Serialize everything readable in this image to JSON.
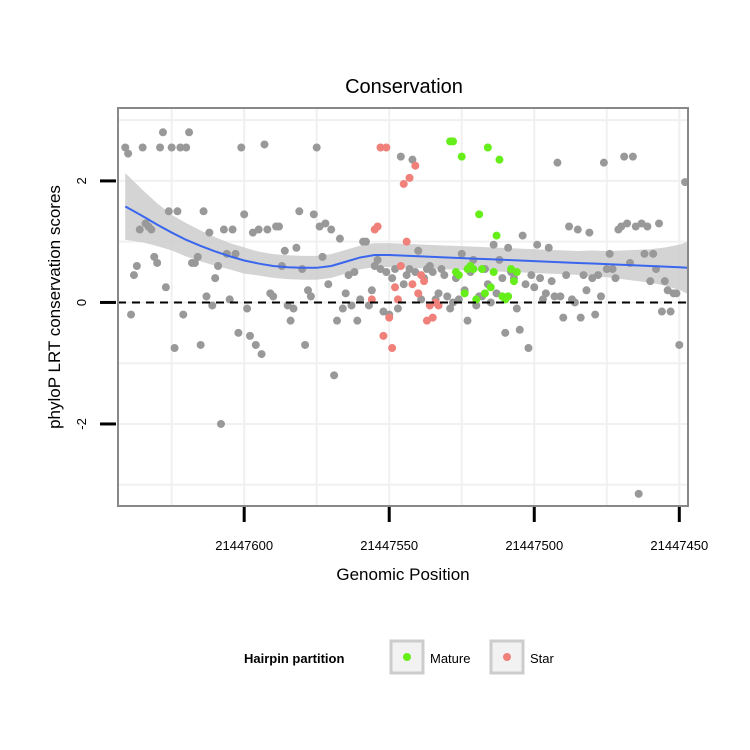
{
  "chart_data": {
    "type": "scatter",
    "title": "Conservation",
    "xlabel": "Genomic Position",
    "ylabel": "phyloP LRT conservation scores",
    "x_reversed": true,
    "xlim": [
      21447643.5,
      21447447
    ],
    "ylim": [
      -3.35,
      3.2
    ],
    "x_ticks": [
      21447600,
      21447550,
      21447500,
      21447450
    ],
    "x_tick_labels": [
      "21447600",
      "21447550",
      "21447500",
      "21447450"
    ],
    "y_ticks": [
      -2,
      0,
      2
    ],
    "y_tick_labels": [
      "-2",
      "0",
      "2"
    ],
    "reference_line_y": 0,
    "grid": true,
    "colors": {
      "other": "#999999",
      "mature": "#66ee1a",
      "star": "#f0807a",
      "smooth": "#3a66ee",
      "ribbon": "#cccccc",
      "panel_border": "#888888",
      "grid": "#f0f0f0"
    },
    "legend": {
      "title": "Hairpin partition",
      "position": "bottom",
      "entries": [
        {
          "label": "Mature",
          "color": "#66ee1a"
        },
        {
          "label": "Star",
          "color": "#f0807a"
        }
      ]
    },
    "series": [
      {
        "name": "Other",
        "points": [
          [
            21447641,
            2.55
          ],
          [
            21447640,
            2.45
          ],
          [
            21447639,
            -0.2
          ],
          [
            21447638,
            0.45
          ],
          [
            21447637,
            0.6
          ],
          [
            21447636,
            1.2
          ],
          [
            21447635,
            2.55
          ],
          [
            21447634,
            1.3
          ],
          [
            21447633,
            1.25
          ],
          [
            21447632,
            1.2
          ],
          [
            21447631,
            0.75
          ],
          [
            21447630,
            0.65
          ],
          [
            21447629,
            2.55
          ],
          [
            21447628,
            2.8
          ],
          [
            21447627,
            0.25
          ],
          [
            21447626,
            1.5
          ],
          [
            21447625,
            2.55
          ],
          [
            21447624,
            -0.75
          ],
          [
            21447623,
            1.5
          ],
          [
            21447622,
            2.55
          ],
          [
            21447621,
            -0.2
          ],
          [
            21447620,
            2.55
          ],
          [
            21447619,
            2.8
          ],
          [
            21447618,
            0.65
          ],
          [
            21447617,
            0.65
          ],
          [
            21447616,
            0.75
          ],
          [
            21447615,
            -0.7
          ],
          [
            21447614,
            1.5
          ],
          [
            21447613,
            0.1
          ],
          [
            21447612,
            1.15
          ],
          [
            21447611,
            -0.05
          ],
          [
            21447610,
            0.4
          ],
          [
            21447609,
            0.6
          ],
          [
            21447608,
            -2.0
          ],
          [
            21447607,
            1.2
          ],
          [
            21447606,
            0.8
          ],
          [
            21447605,
            0.05
          ],
          [
            21447604,
            1.2
          ],
          [
            21447603,
            0.8
          ],
          [
            21447602,
            -0.5
          ],
          [
            21447601,
            2.55
          ],
          [
            21447600,
            1.45
          ],
          [
            21447599,
            -0.1
          ],
          [
            21447598,
            -0.55
          ],
          [
            21447597,
            1.15
          ],
          [
            21447596,
            -0.7
          ],
          [
            21447595,
            1.2
          ],
          [
            21447594,
            -0.85
          ],
          [
            21447593,
            2.6
          ],
          [
            21447592,
            1.2
          ],
          [
            21447591,
            0.15
          ],
          [
            21447590,
            0.1
          ],
          [
            21447589,
            1.25
          ],
          [
            21447588,
            1.25
          ],
          [
            21447587,
            0.6
          ],
          [
            21447586,
            0.85
          ],
          [
            21447585,
            -0.05
          ],
          [
            21447584,
            -0.3
          ],
          [
            21447583,
            -0.1
          ],
          [
            21447582,
            0.9
          ],
          [
            21447581,
            1.5
          ],
          [
            21447580,
            0.55
          ],
          [
            21447579,
            -0.7
          ],
          [
            21447578,
            0.2
          ],
          [
            21447577,
            0.1
          ],
          [
            21447576,
            1.45
          ],
          [
            21447575,
            2.55
          ],
          [
            21447574,
            1.25
          ],
          [
            21447573,
            0.75
          ],
          [
            21447572,
            1.3
          ],
          [
            21447571,
            0.3
          ],
          [
            21447570,
            1.2
          ],
          [
            21447569,
            -1.2
          ],
          [
            21447568,
            -0.3
          ],
          [
            21447567,
            1.05
          ],
          [
            21447566,
            -0.1
          ],
          [
            21447565,
            0.15
          ],
          [
            21447564,
            0.45
          ],
          [
            21447563,
            -0.05
          ],
          [
            21447562,
            0.5
          ],
          [
            21447561,
            -0.3
          ],
          [
            21447560,
            0.05
          ],
          [
            21447559,
            1.0
          ],
          [
            21447558,
            1.0
          ],
          [
            21447557,
            -0.05
          ],
          [
            21447556,
            0.2
          ],
          [
            21447555,
            0.6
          ],
          [
            21447554,
            0.7
          ],
          [
            21447553,
            0.55
          ],
          [
            21447552,
            -0.15
          ],
          [
            21447551,
            0.5
          ],
          [
            21447550,
            -0.2
          ],
          [
            21447549,
            0.4
          ],
          [
            21447548,
            0.55
          ],
          [
            21447547,
            -0.1
          ],
          [
            21447546,
            2.4
          ],
          [
            21447545,
            0.3
          ],
          [
            21447544,
            0.45
          ],
          [
            21447543,
            0.55
          ],
          [
            21447542,
            2.35
          ],
          [
            21447541,
            0.5
          ],
          [
            21447540,
            0.85
          ],
          [
            21447539,
            0.05
          ],
          [
            21447538,
            0.4
          ],
          [
            21447537,
            0.55
          ],
          [
            21447536,
            0.6
          ],
          [
            21447535,
            0.5
          ],
          [
            21447534,
            0.05
          ],
          [
            21447533,
            0.15
          ],
          [
            21447532,
            0.55
          ],
          [
            21447531,
            0.45
          ],
          [
            21447530,
            0.1
          ],
          [
            21447529,
            -0.1
          ],
          [
            21447528,
            0.0
          ],
          [
            21447527,
            0.4
          ],
          [
            21447526,
            0.05
          ],
          [
            21447525,
            0.8
          ],
          [
            21447524,
            0.2
          ],
          [
            21447523,
            -0.3
          ],
          [
            21447522,
            0.5
          ],
          [
            21447521,
            0.7
          ],
          [
            21447520,
            -0.05
          ],
          [
            21447519,
            0.1
          ],
          [
            21447518,
            0.1
          ],
          [
            21447517,
            0.55
          ],
          [
            21447516,
            0.3
          ],
          [
            21447515,
            0.0
          ],
          [
            21447514,
            0.95
          ],
          [
            21447513,
            0.15
          ],
          [
            21447512,
            0.7
          ],
          [
            21447511,
            0.4
          ],
          [
            21447510,
            -0.5
          ],
          [
            21447509,
            0.9
          ],
          [
            21447508,
            0.5
          ],
          [
            21447507,
            0.4
          ],
          [
            21447506,
            -0.1
          ],
          [
            21447505,
            -0.45
          ],
          [
            21447504,
            1.1
          ],
          [
            21447503,
            0.3
          ],
          [
            21447502,
            -0.75
          ],
          [
            21447501,
            0.45
          ],
          [
            21447500,
            0.25
          ],
          [
            21447499,
            0.95
          ],
          [
            21447498,
            0.4
          ],
          [
            21447497,
            0.05
          ],
          [
            21447496,
            0.15
          ],
          [
            21447495,
            0.9
          ],
          [
            21447494,
            0.35
          ],
          [
            21447493,
            0.1
          ],
          [
            21447492,
            2.3
          ],
          [
            21447491,
            0.1
          ],
          [
            21447490,
            -0.25
          ],
          [
            21447489,
            0.45
          ],
          [
            21447488,
            1.25
          ],
          [
            21447487,
            0.05
          ],
          [
            21447486,
            0.0
          ],
          [
            21447485,
            1.2
          ],
          [
            21447484,
            -0.25
          ],
          [
            21447483,
            0.45
          ],
          [
            21447482,
            0.2
          ],
          [
            21447481,
            1.15
          ],
          [
            21447480,
            0.4
          ],
          [
            21447479,
            -0.2
          ],
          [
            21447478,
            0.45
          ],
          [
            21447477,
            0.1
          ],
          [
            21447476,
            2.3
          ],
          [
            21447475,
            0.55
          ],
          [
            21447474,
            0.8
          ],
          [
            21447473,
            0.55
          ],
          [
            21447472,
            0.4
          ],
          [
            21447471,
            1.2
          ],
          [
            21447470,
            1.25
          ],
          [
            21447469,
            2.4
          ],
          [
            21447468,
            1.3
          ],
          [
            21447467,
            0.65
          ],
          [
            21447466,
            2.4
          ],
          [
            21447465,
            1.25
          ],
          [
            21447464,
            -3.15
          ],
          [
            21447463,
            1.3
          ],
          [
            21447462,
            0.8
          ],
          [
            21447461,
            1.25
          ],
          [
            21447460,
            0.35
          ],
          [
            21447459,
            0.8
          ],
          [
            21447458,
            0.55
          ],
          [
            21447457,
            1.3
          ],
          [
            21447456,
            -0.15
          ],
          [
            21447455,
            0.35
          ],
          [
            21447454,
            0.2
          ],
          [
            21447453,
            -0.15
          ],
          [
            21447452,
            0.15
          ],
          [
            21447451,
            0.15
          ],
          [
            21447450,
            -0.7
          ],
          [
            21447448,
            1.98
          ]
        ]
      },
      {
        "name": "Star",
        "points": [
          [
            21447553,
            2.55
          ],
          [
            21447551,
            2.55
          ],
          [
            21447552,
            -0.55
          ],
          [
            21447550,
            -0.25
          ],
          [
            21447549,
            -0.75
          ],
          [
            21447548,
            0.25
          ],
          [
            21447547,
            0.05
          ],
          [
            21447546,
            0.6
          ],
          [
            21447545,
            1.95
          ],
          [
            21447544,
            1.0
          ],
          [
            21447543,
            2.05
          ],
          [
            21447542,
            0.3
          ],
          [
            21447541,
            2.25
          ],
          [
            21447540,
            0.15
          ],
          [
            21447539,
            0.45
          ],
          [
            21447538,
            0.35
          ],
          [
            21447537,
            -0.3
          ],
          [
            21447536,
            -0.05
          ],
          [
            21447535,
            -0.25
          ],
          [
            21447534,
            0.0
          ],
          [
            21447533,
            -0.05
          ],
          [
            21447555,
            1.2
          ],
          [
            21447556,
            0.05
          ],
          [
            21447554,
            1.25
          ]
        ]
      },
      {
        "name": "Mature",
        "points": [
          [
            21447529,
            2.65
          ],
          [
            21447528,
            2.65
          ],
          [
            21447527,
            0.5
          ],
          [
            21447526,
            0.45
          ],
          [
            21447525,
            2.4
          ],
          [
            21447524,
            0.15
          ],
          [
            21447523,
            0.55
          ],
          [
            21447522,
            0.6
          ],
          [
            21447521,
            0.55
          ],
          [
            21447520,
            0.05
          ],
          [
            21447519,
            1.45
          ],
          [
            21447518,
            0.55
          ],
          [
            21447517,
            0.15
          ],
          [
            21447516,
            2.55
          ],
          [
            21447515,
            0.25
          ],
          [
            21447514,
            0.5
          ],
          [
            21447513,
            1.1
          ],
          [
            21447512,
            2.35
          ],
          [
            21447511,
            0.1
          ],
          [
            21447510,
            0.05
          ],
          [
            21447509,
            0.1
          ],
          [
            21447508,
            0.55
          ],
          [
            21447507,
            0.35
          ],
          [
            21447506,
            0.5
          ]
        ]
      }
    ],
    "smooth": {
      "method": "loess",
      "x": [
        21447641,
        21447635,
        21447630,
        21447625,
        21447620,
        21447615,
        21447610,
        21447605,
        21447600,
        21447595,
        21447590,
        21447585,
        21447580,
        21447575,
        21447570,
        21447565,
        21447560,
        21447555,
        21447550,
        21447545,
        21447540,
        21447535,
        21447530,
        21447525,
        21447520,
        21447515,
        21447510,
        21447505,
        21447500,
        21447495,
        21447490,
        21447485,
        21447480,
        21447475,
        21447470,
        21447465,
        21447460,
        21447455,
        21447450,
        21447447
      ],
      "y": [
        1.58,
        1.42,
        1.28,
        1.15,
        1.03,
        0.93,
        0.84,
        0.76,
        0.69,
        0.64,
        0.6,
        0.58,
        0.57,
        0.57,
        0.6,
        0.67,
        0.74,
        0.78,
        0.78,
        0.77,
        0.76,
        0.75,
        0.74,
        0.73,
        0.72,
        0.71,
        0.7,
        0.69,
        0.68,
        0.67,
        0.66,
        0.65,
        0.64,
        0.63,
        0.62,
        0.61,
        0.6,
        0.59,
        0.58,
        0.57
      ],
      "se": [
        0.28,
        0.22,
        0.18,
        0.15,
        0.14,
        0.13,
        0.12,
        0.11,
        0.11,
        0.1,
        0.1,
        0.1,
        0.1,
        0.1,
        0.1,
        0.1,
        0.1,
        0.1,
        0.1,
        0.1,
        0.1,
        0.1,
        0.1,
        0.1,
        0.1,
        0.1,
        0.1,
        0.1,
        0.1,
        0.1,
        0.1,
        0.1,
        0.11,
        0.11,
        0.12,
        0.13,
        0.14,
        0.16,
        0.19,
        0.22
      ]
    }
  }
}
